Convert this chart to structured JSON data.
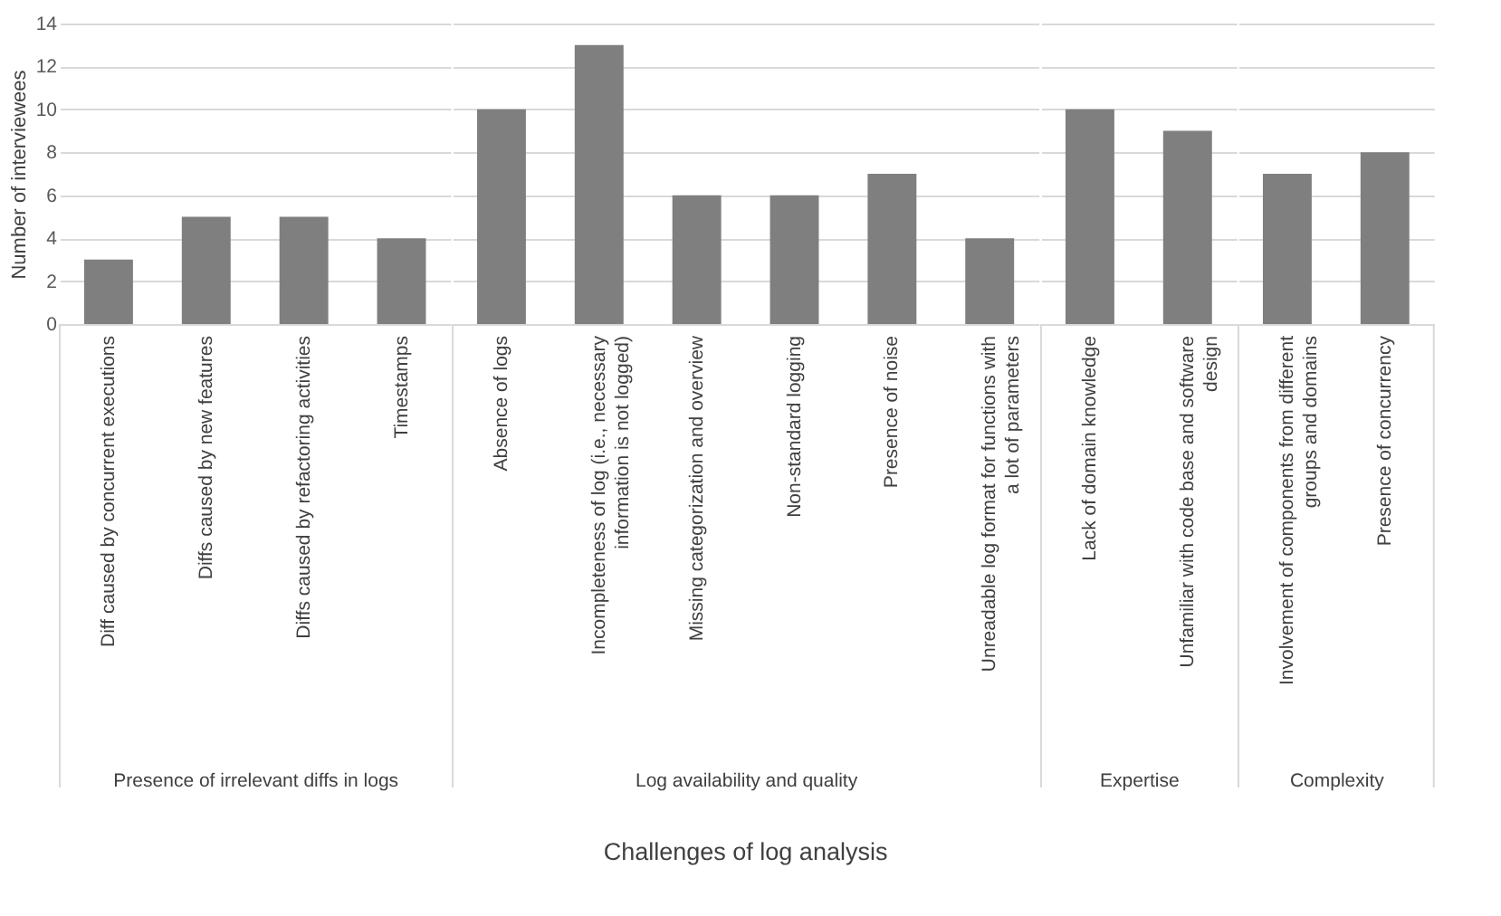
{
  "chart_data": [
    {
      "type": "bar",
      "xlabel": "Presence of irrelevant diffs in logs",
      "ylabel": "Number of interviewees",
      "categories": [
        "Diff caused by concurrent executions",
        "Diffs caused by new features",
        "Diffs caused by refactoring activities",
        "Timestamps"
      ],
      "values": [
        3,
        5,
        5,
        4
      ],
      "color": "#7f7f7f",
      "ylim": [
        0,
        14
      ],
      "yticks": [
        0,
        2,
        4,
        6,
        8,
        10,
        12,
        14
      ],
      "grid": "y"
    },
    {
      "type": "bar",
      "xlabel": "Log availability and quality",
      "categories": [
        "Absence of logs",
        "Incompleteness of log (i.e., necessary information is not logged)",
        "Missing categorization and overview",
        "Non-standard logging",
        "Presence of noise",
        "Unreadable log format for functions with a lot of parameters"
      ],
      "values": [
        10,
        13,
        6,
        6,
        7,
        4
      ],
      "color": "#7f7f7f",
      "ylim": [
        0,
        14
      ],
      "yticks": [
        0,
        2,
        4,
        6,
        8,
        10,
        12,
        14
      ],
      "grid": "y",
      "tick_labels": "x",
      "annotations": [
        "Challenges of log analysis"
      ]
    },
    {
      "type": "bar",
      "xlabel": "Expertise",
      "categories": [
        "Lack of domain knowledge",
        "Unfamiliar with code base and software design"
      ],
      "values": [
        10,
        9
      ],
      "color": "#7f7f7f",
      "ylim": [
        0,
        14
      ],
      "yticks": [
        0,
        2,
        4,
        6,
        8,
        10,
        12,
        14
      ],
      "grid": "y",
      "tick_labels": "x"
    },
    {
      "type": "bar",
      "xlabel": "Complexity",
      "categories": [
        "Involvement of components from different groups and domains",
        "Presence of concurrency"
      ],
      "values": [
        7,
        8
      ],
      "color": "#7f7f7f",
      "ylim": [
        0,
        14
      ],
      "yticks": [
        0,
        2,
        4,
        6,
        8,
        10,
        12,
        14
      ],
      "grid": "y",
      "tick_labels": "x"
    }
  ]
}
